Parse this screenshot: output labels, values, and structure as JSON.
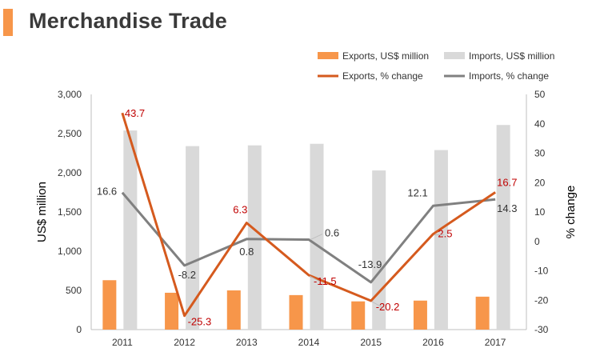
{
  "header": {
    "title": "Merchandise Trade"
  },
  "colors": {
    "exports_bar": "#f7964a",
    "imports_bar": "#d9d9d9",
    "exports_line": "#d55a1e",
    "imports_line": "#808080",
    "exports_label": "#c00000",
    "imports_label": "#333333",
    "accent": "#f7964a"
  },
  "chart_data": {
    "type": "bar+line",
    "categories": [
      "2011",
      "2012",
      "2013",
      "2014",
      "2015",
      "2016",
      "2017"
    ],
    "y_left": {
      "label": "US$ million",
      "min": 0,
      "max": 3000,
      "step": 500,
      "ticks": [
        "0",
        "500",
        "1,000",
        "1,500",
        "2,000",
        "2,500",
        "3,000"
      ]
    },
    "y_right": {
      "label": "% change",
      "min": -30,
      "max": 50,
      "step": 10,
      "ticks": [
        "-30",
        "-20",
        "-10",
        "0",
        "10",
        "20",
        "30",
        "40",
        "50"
      ]
    },
    "bar_series": [
      {
        "name": "Exports, US$ million",
        "values": [
          630,
          470,
          500,
          440,
          360,
          370,
          420
        ]
      },
      {
        "name": "Imports, US$ million",
        "values": [
          2540,
          2340,
          2350,
          2370,
          2030,
          2290,
          2610
        ]
      }
    ],
    "line_series": [
      {
        "name": "Exports, % change",
        "values": [
          43.7,
          -25.3,
          6.3,
          -11.5,
          -20.2,
          2.5,
          16.7
        ],
        "labels": [
          "43.7",
          "-25.3",
          "6.3",
          "-11.5",
          "-20.2",
          "2.5",
          "16.7"
        ]
      },
      {
        "name": "Imports, % change",
        "values": [
          16.6,
          -8.2,
          0.8,
          0.6,
          -13.9,
          12.1,
          14.3
        ],
        "labels": [
          "16.6",
          "-8.2",
          "0.8",
          "0.6",
          "-13.9",
          "12.1",
          "14.3"
        ]
      }
    ],
    "legend": [
      "Exports, US$ million",
      "Imports, US$ million",
      "Exports, % change",
      "Imports, % change"
    ],
    "grid": false,
    "legend_position": "top-right"
  }
}
